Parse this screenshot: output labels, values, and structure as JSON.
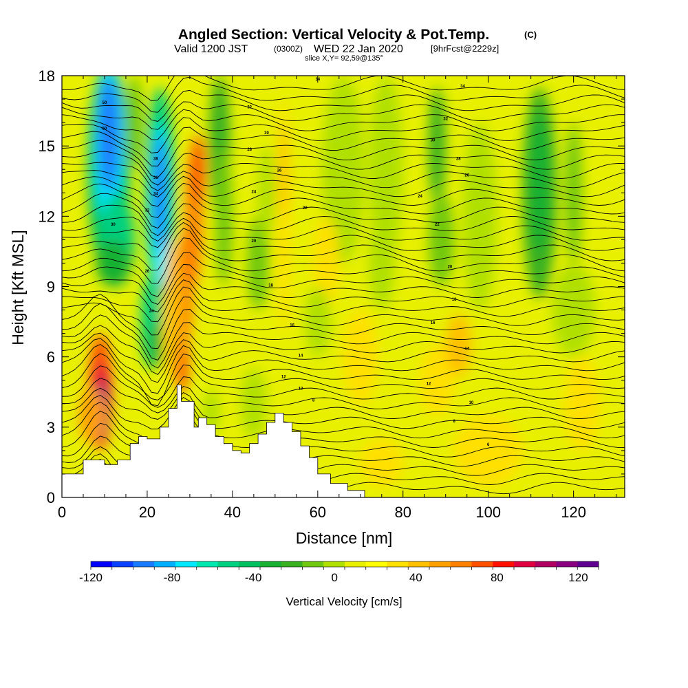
{
  "title": {
    "main": "Angled Section: Vertical Velocity & Pot.Temp.",
    "copyright": "(C)",
    "valid_prefix": "Valid 1200 JST",
    "valid_zulu": "(0300Z)",
    "valid_date": "WED 22 Jan 2020",
    "forecast": "[9hrFcst@2229z]",
    "slice": "slice X,Y= 92,59@135°"
  },
  "chart_data": {
    "type": "heatmap",
    "xlabel": "Distance [nm]",
    "ylabel": "Height [Kft MSL]",
    "xlim": [
      0,
      132
    ],
    "ylim": [
      0,
      18
    ],
    "x_ticks": [
      "0",
      "20",
      "40",
      "60",
      "80",
      "100",
      "120"
    ],
    "y_ticks": [
      "0",
      "3",
      "6",
      "9",
      "12",
      "15",
      "18"
    ],
    "colorbar": {
      "title": "Vertical Velocity [cm/s]",
      "min": -120,
      "max": 130,
      "step": 10,
      "tick_labels": [
        "-120",
        "-80",
        "-40",
        "0",
        "40",
        "80",
        "120"
      ],
      "colors": [
        "#0000ff",
        "#0a40ff",
        "#1a7aff",
        "#00b0ff",
        "#00e8ff",
        "#00e8b0",
        "#00d080",
        "#00c060",
        "#18b030",
        "#38b020",
        "#70c810",
        "#b0e000",
        "#e8f000",
        "#ffff00",
        "#ffe000",
        "#ffc000",
        "#ffa000",
        "#ff8000",
        "#ff5000",
        "#ff1000",
        "#e00040",
        "#b00060",
        "#880080",
        "#600090"
      ]
    },
    "terrain_profile": {
      "description_units": "height in Kft MSL vs distance in nm",
      "x": [
        0,
        5,
        5,
        10,
        10,
        13,
        13,
        16,
        16,
        18,
        18,
        20,
        20,
        23,
        23,
        25,
        25,
        27,
        27,
        28,
        28,
        31,
        31,
        32,
        32,
        34,
        34,
        36,
        36,
        38,
        38,
        40,
        40,
        42,
        42,
        44,
        44,
        46,
        46,
        48,
        48,
        50,
        50,
        52,
        52,
        54,
        54,
        56,
        56,
        58,
        58,
        60,
        60,
        63,
        63,
        67,
        67,
        71,
        71,
        132
      ],
      "y": [
        1.0,
        1.0,
        1.6,
        1.6,
        1.4,
        1.4,
        1.6,
        1.6,
        2.3,
        2.3,
        2.6,
        2.6,
        2.5,
        2.5,
        3.0,
        3.0,
        3.8,
        3.8,
        4.8,
        4.8,
        4.1,
        4.1,
        3.0,
        3.0,
        3.4,
        3.4,
        3.1,
        3.1,
        2.6,
        2.6,
        2.3,
        2.3,
        2.0,
        2.0,
        1.9,
        1.9,
        2.3,
        2.3,
        2.7,
        2.7,
        3.2,
        3.2,
        3.6,
        3.6,
        3.2,
        3.2,
        2.8,
        2.8,
        2.2,
        2.2,
        1.7,
        1.7,
        1.0,
        1.0,
        0.6,
        0.6,
        0.3,
        0.3,
        0.0,
        0.0
      ]
    },
    "contour_labels": [
      {
        "text": "50",
        "x": 10,
        "y": 16.8
      },
      {
        "text": "50",
        "x": 10,
        "y": 15.7
      },
      {
        "text": "34",
        "x": 60,
        "y": 17.8
      },
      {
        "text": "34",
        "x": 94,
        "y": 17.5
      },
      {
        "text": "32",
        "x": 44,
        "y": 16.6
      },
      {
        "text": "32",
        "x": 90,
        "y": 16.1
      },
      {
        "text": "30",
        "x": 48,
        "y": 15.5
      },
      {
        "text": "30",
        "x": 87,
        "y": 15.2
      },
      {
        "text": "28",
        "x": 44,
        "y": 14.8
      },
      {
        "text": "28",
        "x": 93,
        "y": 14.4
      },
      {
        "text": "26",
        "x": 51,
        "y": 13.9
      },
      {
        "text": "26",
        "x": 95,
        "y": 13.7
      },
      {
        "text": "24",
        "x": 45,
        "y": 13.0
      },
      {
        "text": "24",
        "x": 84,
        "y": 12.8
      },
      {
        "text": "22",
        "x": 57,
        "y": 12.3
      },
      {
        "text": "22",
        "x": 88,
        "y": 11.6
      },
      {
        "text": "20",
        "x": 45,
        "y": 10.9
      },
      {
        "text": "20",
        "x": 91,
        "y": 9.8
      },
      {
        "text": "18",
        "x": 49,
        "y": 9.0
      },
      {
        "text": "18",
        "x": 92,
        "y": 8.4
      },
      {
        "text": "16",
        "x": 54,
        "y": 7.3
      },
      {
        "text": "16",
        "x": 87,
        "y": 7.4
      },
      {
        "text": "14",
        "x": 56,
        "y": 6.0
      },
      {
        "text": "14",
        "x": 95,
        "y": 6.3
      },
      {
        "text": "12",
        "x": 52,
        "y": 5.1
      },
      {
        "text": "12",
        "x": 86,
        "y": 4.8
      },
      {
        "text": "10",
        "x": 56,
        "y": 4.6
      },
      {
        "text": "10",
        "x": 96,
        "y": 4.0
      },
      {
        "text": "8",
        "x": 59,
        "y": 4.1
      },
      {
        "text": "8",
        "x": 92,
        "y": 3.2
      },
      {
        "text": "6",
        "x": 100,
        "y": 2.2
      },
      {
        "text": "38",
        "x": 22,
        "y": 14.4
      },
      {
        "text": "36",
        "x": 22,
        "y": 13.6
      },
      {
        "text": "34",
        "x": 22,
        "y": 12.9
      },
      {
        "text": "32",
        "x": 20,
        "y": 12.2
      },
      {
        "text": "30",
        "x": 12,
        "y": 11.6
      },
      {
        "text": "26",
        "x": 20,
        "y": 9.6
      },
      {
        "text": "24",
        "x": 21,
        "y": 7.9
      }
    ]
  }
}
